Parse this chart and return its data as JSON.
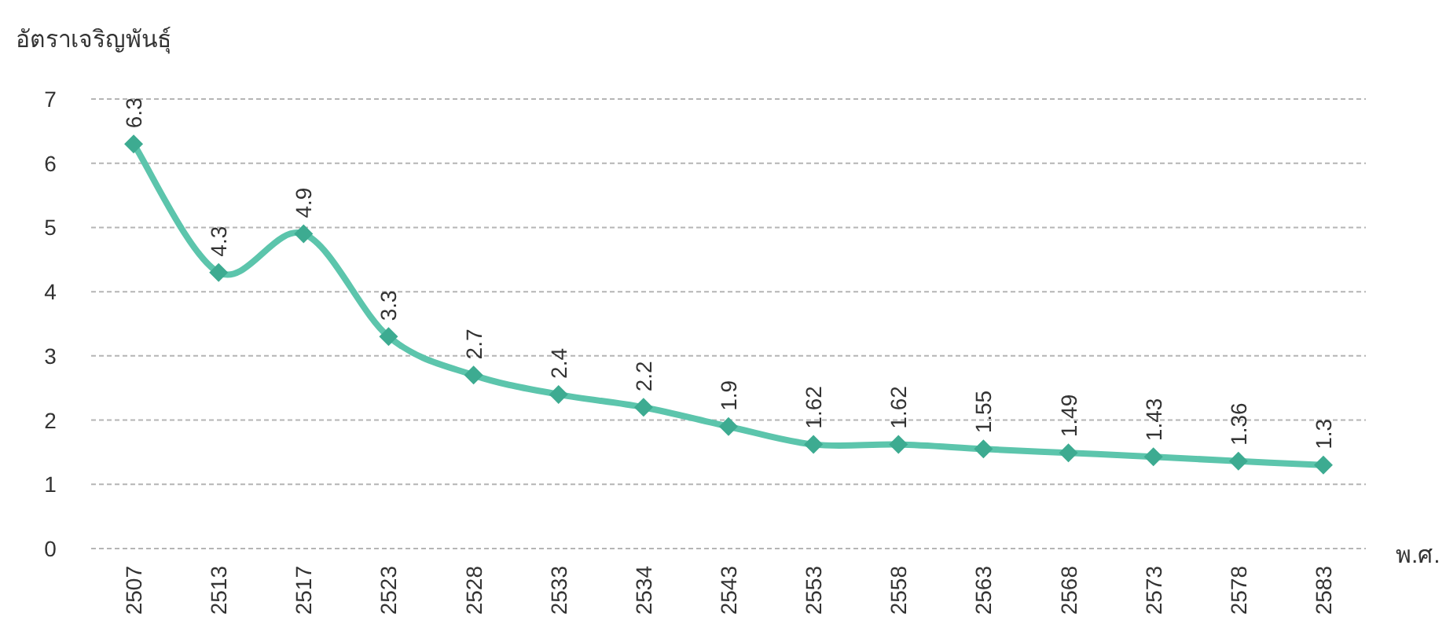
{
  "chart_data": {
    "type": "line",
    "ylabel": "อัตราเจริญพันธุ์",
    "xlabel": "พ.ศ.",
    "categories": [
      "2507",
      "2513",
      "2517",
      "2523",
      "2528",
      "2533",
      "2534",
      "2543",
      "2553",
      "2558",
      "2563",
      "2568",
      "2573",
      "2578",
      "2583"
    ],
    "values": [
      6.3,
      4.3,
      4.9,
      3.3,
      2.7,
      2.4,
      2.2,
      1.9,
      1.62,
      1.62,
      1.55,
      1.49,
      1.43,
      1.36,
      1.3
    ],
    "color": "#5cc5ac",
    "ylim": [
      0,
      7
    ],
    "yticks": [
      0,
      1,
      2,
      3,
      4,
      5,
      6,
      7
    ],
    "grid": "y",
    "marker": "diamond",
    "data_labels": true
  }
}
